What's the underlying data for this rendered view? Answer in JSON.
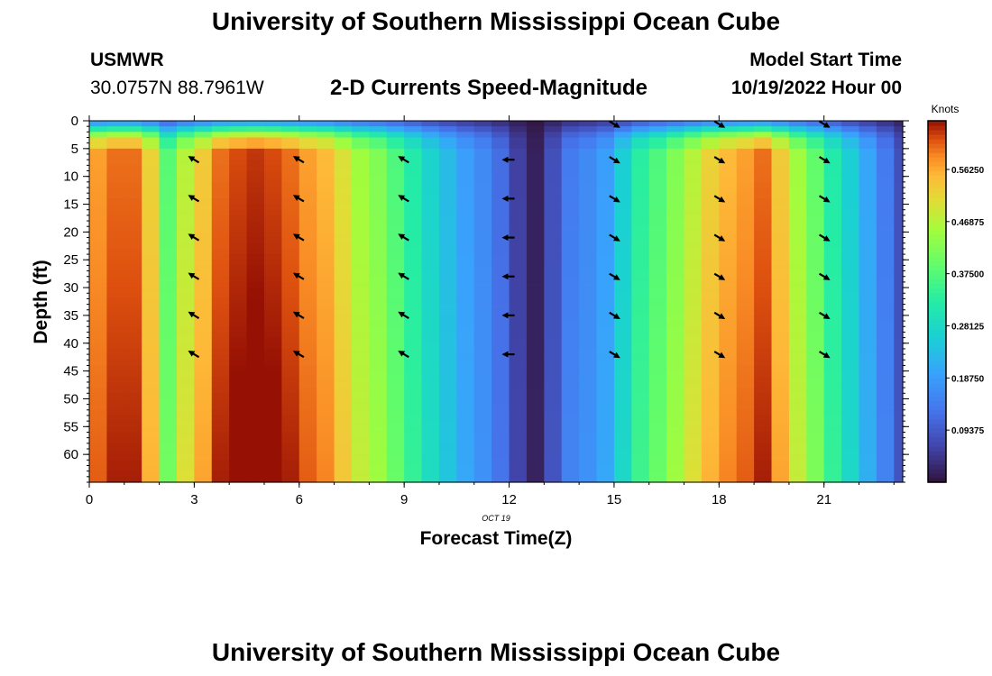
{
  "title_top": "University of Southern Mississippi Ocean Cube",
  "title_bottom": "University of Southern Mississippi Ocean Cube",
  "station": {
    "id": "USMWR",
    "location": "30.0757N  88.7961W"
  },
  "model": {
    "label": "Model Start Time",
    "time": "10/19/2022 Hour 00"
  },
  "colors": {
    "text": "#000000",
    "background": "#ffffff"
  },
  "chart_data": {
    "type": "heatmap",
    "title": "2-D Currents Speed-Magnitude",
    "xlabel": "Forecast Time(Z)",
    "ylabel": "Depth (ft)",
    "date_label": "OCT 19",
    "xlim": [
      0,
      23.25
    ],
    "ylim": [
      0,
      65
    ],
    "x_ticks": [
      0,
      3,
      6,
      9,
      12,
      15,
      18,
      21
    ],
    "y_ticks": [
      0,
      5,
      10,
      15,
      20,
      25,
      30,
      35,
      40,
      45,
      50,
      55,
      60
    ],
    "colorbar": {
      "unit": "Knots",
      "range": [
        0,
        0.65
      ],
      "tick_values": [
        0.09375,
        0.1875,
        0.28125,
        0.375,
        0.46875,
        0.5625
      ],
      "tick_labels": [
        "0.09375",
        "0.18750",
        "0.28125",
        "0.37500",
        "0.46875",
        "0.56250"
      ]
    },
    "speed_by_hour_knots": [
      0.57,
      0.6,
      0.6,
      0.52,
      0.38,
      0.47,
      0.53,
      0.6,
      0.62,
      0.63,
      0.62,
      0.6,
      0.57,
      0.55,
      0.5,
      0.45,
      0.42,
      0.37,
      0.32,
      0.27,
      0.23,
      0.19,
      0.16,
      0.12,
      0.06,
      0.02,
      0.08,
      0.14,
      0.16,
      0.19,
      0.26,
      0.33,
      0.37,
      0.42,
      0.47,
      0.52,
      0.55,
      0.57,
      0.6,
      0.53,
      0.45,
      0.39,
      0.32,
      0.26,
      0.2,
      0.14,
      0.08
    ],
    "arrows": [
      {
        "time": 3,
        "direction": "NW",
        "depths": [
          7,
          14,
          21,
          28,
          35,
          42
        ]
      },
      {
        "time": 6,
        "direction": "NW",
        "depths": [
          7,
          14,
          21,
          28,
          35,
          42
        ]
      },
      {
        "time": 9,
        "direction": "NW",
        "depths": [
          7,
          14,
          21,
          28,
          35,
          42
        ]
      },
      {
        "time": 12,
        "direction": "W",
        "depths": [
          7,
          14,
          21,
          28,
          35,
          42
        ]
      },
      {
        "time": 15,
        "direction": "SE",
        "depths": [
          0,
          7,
          14,
          21,
          28,
          35,
          42
        ]
      },
      {
        "time": 18,
        "direction": "SE",
        "depths": [
          0,
          7,
          14,
          21,
          28,
          35,
          42
        ]
      },
      {
        "time": 21,
        "direction": "SE",
        "depths": [
          0,
          7,
          14,
          21,
          28,
          35,
          42
        ]
      }
    ]
  }
}
